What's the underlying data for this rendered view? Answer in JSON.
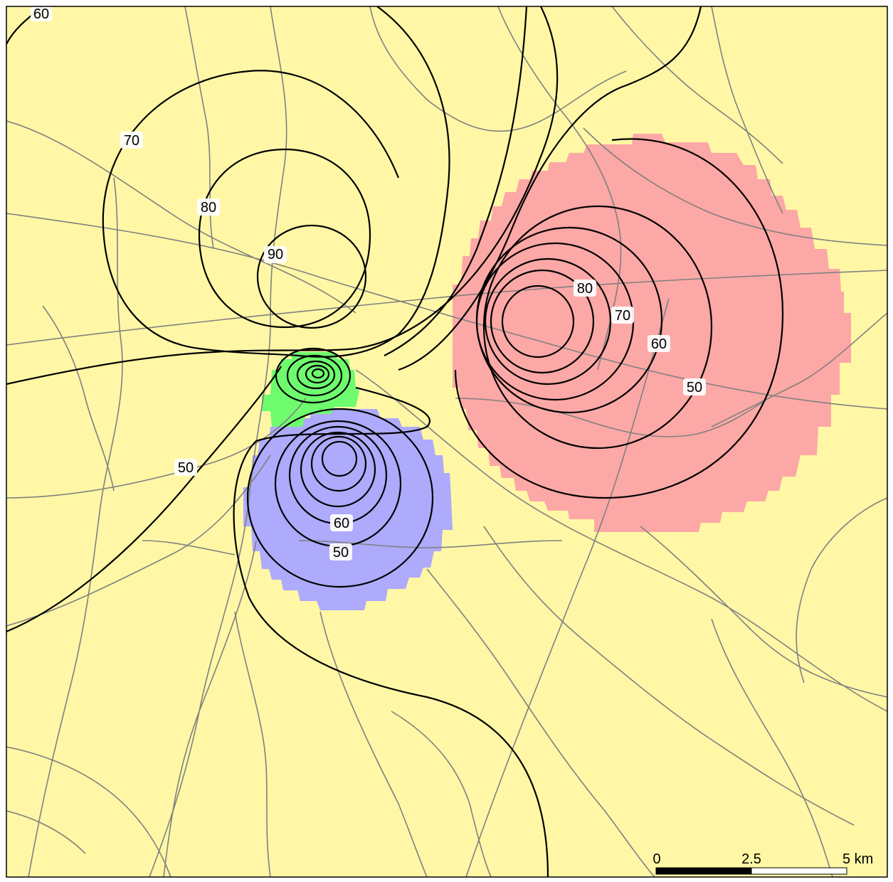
{
  "map": {
    "colors": {
      "background": "#fff7a6",
      "frame": "#000000",
      "roads": "#808080",
      "contours": "#000000",
      "zone_green": "#6efc6e",
      "zone_blue": "#aeaafc",
      "zone_red": "#fca8a6"
    },
    "zones": [
      {
        "name": "green-zone",
        "color": "#6efc6e"
      },
      {
        "name": "blue-zone",
        "color": "#aeaafc"
      },
      {
        "name": "red-zone",
        "color": "#fca8a6"
      }
    ],
    "contour_labels": {
      "nw_corner": "60",
      "nw_70": "70",
      "nw_80": "80",
      "nw_90": "90",
      "west_50": "50",
      "blue_60": "60",
      "blue_50": "50",
      "red_80": "80",
      "red_70": "70",
      "red_60": "60",
      "red_50": "50"
    }
  },
  "scale_bar": {
    "label_0": "0",
    "label_mid": "2.5",
    "label_max": "5 km",
    "fill_color": "#000000",
    "empty_color": "#ffffff"
  }
}
